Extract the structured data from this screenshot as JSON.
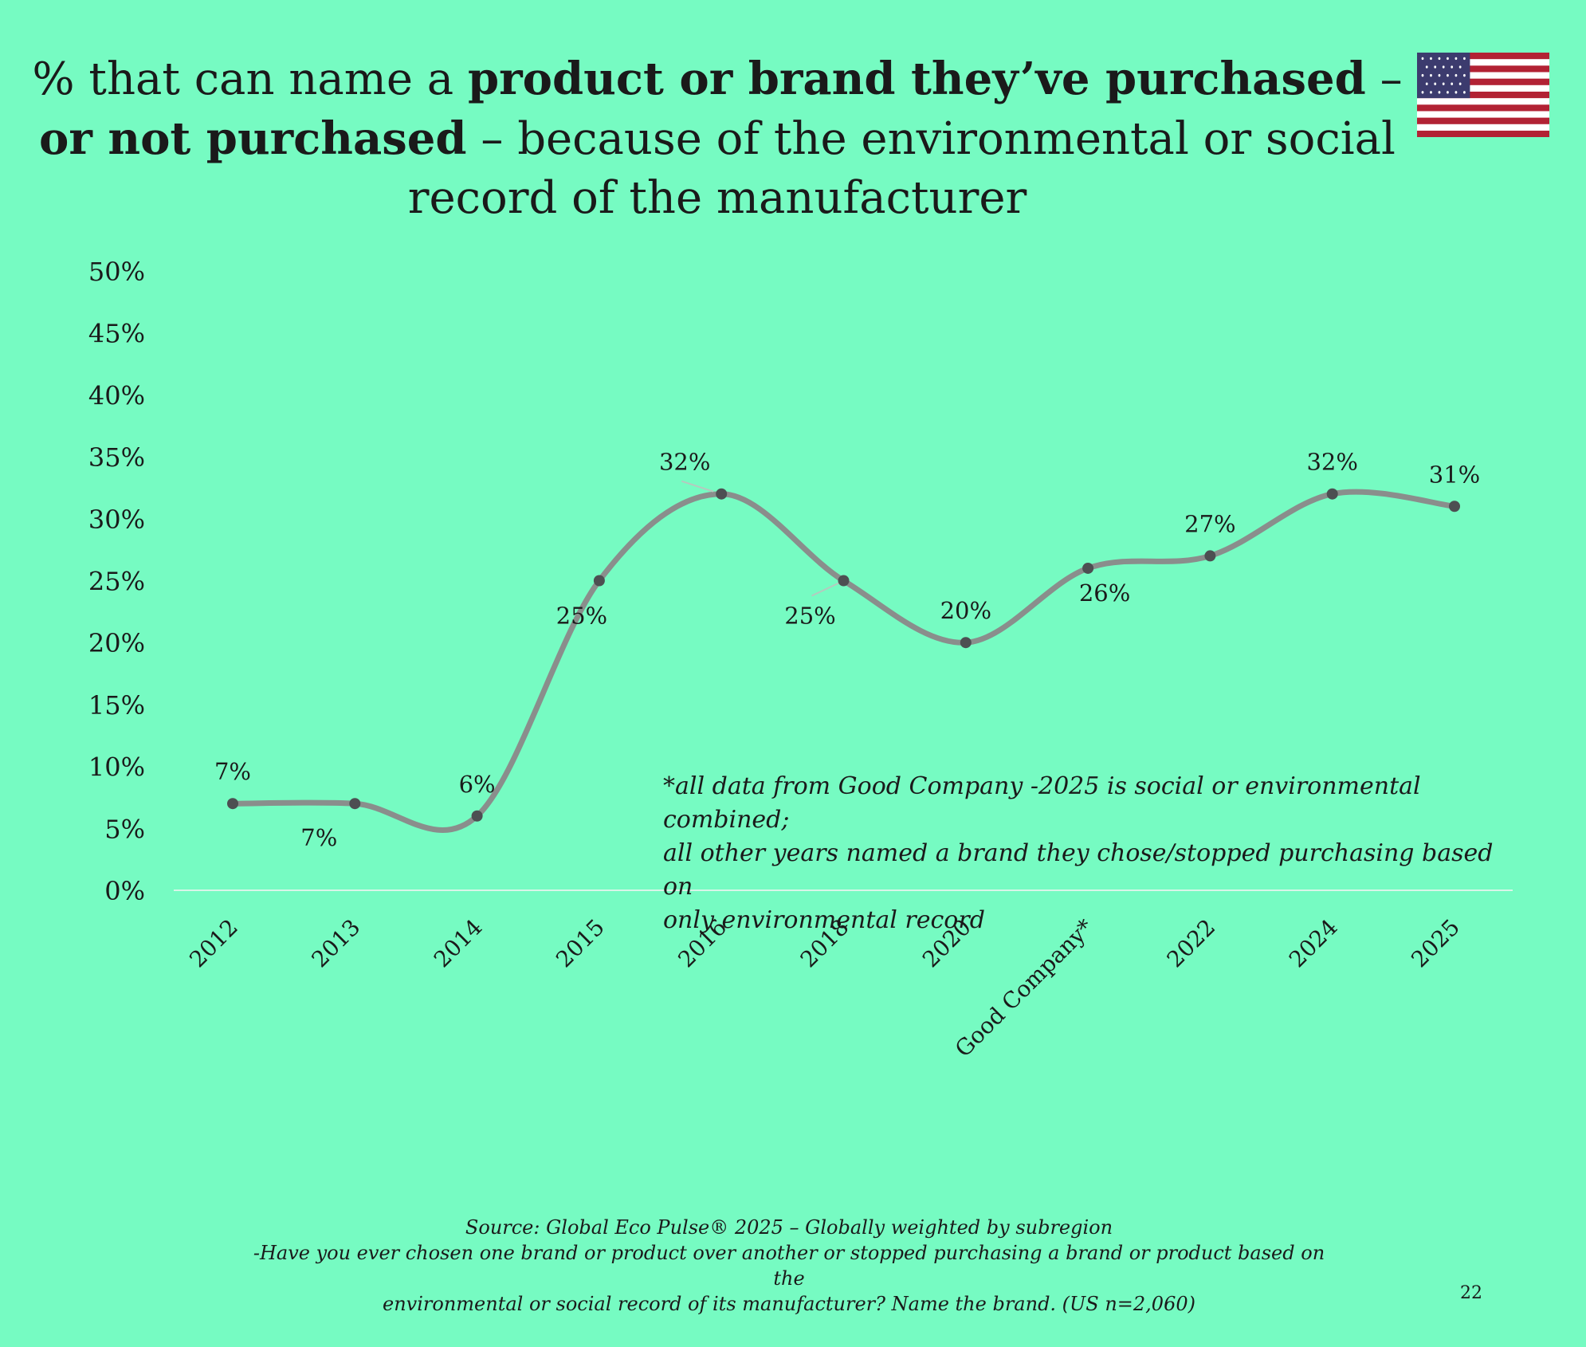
{
  "title": {
    "part1": "% that can name a ",
    "bold1": "product or brand they’ve purchased",
    "part2": " – ",
    "bold2": "or not purchased",
    "part3": " – because of the environmental or social record of the manufacturer"
  },
  "flag_icon": "us-flag-icon",
  "colors": {
    "background": "#76fbc2",
    "line": "#8a8e8c",
    "marker": "#4d4f52"
  },
  "chart_data": {
    "type": "line",
    "categories": [
      "2012",
      "2013",
      "2014",
      "2015",
      "2016",
      "2018",
      "2020",
      "Good Company*",
      "2022",
      "2024",
      "2025"
    ],
    "values": [
      7,
      7,
      6,
      25,
      32,
      25,
      20,
      26,
      27,
      32,
      31
    ],
    "data_labels": [
      "7%",
      "7%",
      "6%",
      "25%",
      "32%",
      "25%",
      "20%",
      "26%",
      "27%",
      "32%",
      "31%"
    ],
    "y_ticks": [
      "0%",
      "5%",
      "10%",
      "15%",
      "20%",
      "25%",
      "30%",
      "35%",
      "40%",
      "45%",
      "50%"
    ],
    "ylim": [
      0,
      50
    ],
    "smooth": true,
    "grid": false,
    "legend": "none"
  },
  "note": {
    "line1": "*all data from Good Company -2025 is social or environmental combined;",
    "line2": "all other years named a brand they chose/stopped purchasing based on",
    "line3": "only environmental record"
  },
  "source": {
    "line1": "Source: Global Eco Pulse® 2025 – Globally weighted by subregion",
    "line2": "-Have you ever chosen one brand or product over another or stopped purchasing a brand or product based on the",
    "line3": "environmental or social record of its manufacturer? Name the brand. (US n=2,060)"
  },
  "page_number": "22"
}
